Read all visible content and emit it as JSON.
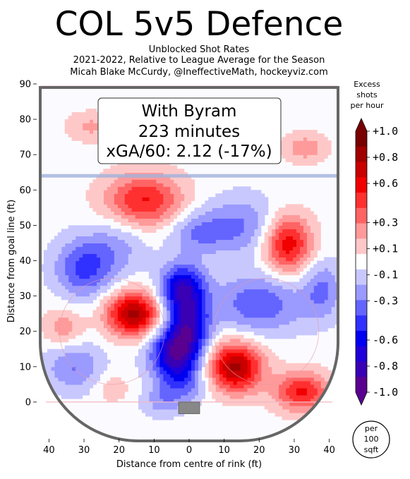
{
  "chart_data": {
    "type": "heatmap",
    "title": "COL 5v5 Defence",
    "subtitle_lines": [
      "Unblocked Shot Rates",
      "2021-2022, Relative to League Average for the Season",
      "Micah Blake McCurdy, @IneffectiveMath, hockeyviz.com"
    ],
    "xlabel": "Distance from centre of rink (ft)",
    "ylabel": "Distance from goal line (ft)",
    "xlim": [
      42.5,
      -42.5
    ],
    "ylim": [
      -10,
      90
    ],
    "x_ticks": [
      40,
      30,
      20,
      10,
      0,
      10,
      20,
      30,
      40
    ],
    "x_tick_values": [
      40,
      30,
      20,
      10,
      0,
      -10,
      -20,
      -30,
      -40
    ],
    "y_ticks": [
      0,
      10,
      20,
      30,
      40,
      50,
      60,
      70,
      80,
      90
    ],
    "annotation": {
      "line1": "With Byram",
      "line2": "223 minutes",
      "line3": "xGA/60: 2.12 (-17%)"
    },
    "colorbar": {
      "title_lines": [
        "Excess",
        "shots",
        "per hour"
      ],
      "labels": [
        "+1.0",
        "+0.8",
        "+0.6",
        "+0.3",
        "+0.1",
        "-0.1",
        "-0.3",
        "-0.6",
        "-0.8",
        "-1.0"
      ],
      "label_values": [
        1.0,
        0.8,
        0.6,
        0.3,
        0.1,
        -0.1,
        -0.3,
        -0.6,
        -0.8,
        -1.0
      ],
      "range": [
        -1.0,
        1.0
      ],
      "colors": [
        "#5a0090",
        "#3a00b4",
        "#2000d8",
        "#0000f0",
        "#3030ff",
        "#6464ff",
        "#9a9aff",
        "#c8c8ff",
        "#ffffff",
        "#ffc8c8",
        "#ff9a9a",
        "#ff6464",
        "#ff3030",
        "#f00000",
        "#c80000",
        "#a00000",
        "#780000"
      ]
    },
    "unit_badge_lines": [
      "per",
      "100",
      "sqft"
    ],
    "hotspots": [
      {
        "x": 16,
        "y": 25,
        "value": 0.8,
        "sx": 5.5,
        "sy": 4.5
      },
      {
        "x": 13,
        "y": 57,
        "value": 0.55,
        "sx": 8,
        "sy": 5.5
      },
      {
        "x": -13,
        "y": 10,
        "value": 0.8,
        "sx": 5.5,
        "sy": 5
      },
      {
        "x": -28,
        "y": 45,
        "value": 0.65,
        "sx": 5,
        "sy": 6
      },
      {
        "x": -32,
        "y": 3,
        "value": 0.55,
        "sx": 5.5,
        "sy": 4
      },
      {
        "x": 36,
        "y": 21,
        "value": 0.25,
        "sx": 4,
        "sy": 4
      },
      {
        "x": -33,
        "y": 72,
        "value": 0.25,
        "sx": 4.5,
        "sy": 3
      },
      {
        "x": 28,
        "y": 78,
        "value": 0.2,
        "sx": 5,
        "sy": 3
      },
      {
        "x": 22,
        "y": 4,
        "value": 0.15,
        "sx": 3.5,
        "sy": 3
      },
      {
        "x": 4,
        "y": 14,
        "value": -0.85,
        "sx": 5,
        "sy": 5
      },
      {
        "x": 2,
        "y": 32,
        "value": -0.75,
        "sx": 4.5,
        "sy": 5
      },
      {
        "x": 0,
        "y": 22,
        "value": -0.6,
        "sx": 4,
        "sy": 5
      },
      {
        "x": 30,
        "y": 38,
        "value": -0.45,
        "sx": 6,
        "sy": 6
      },
      {
        "x": 33,
        "y": 10,
        "value": -0.3,
        "sx": 6,
        "sy": 5
      },
      {
        "x": -15,
        "y": 50,
        "value": -0.3,
        "sx": 9,
        "sy": 6
      },
      {
        "x": -20,
        "y": 28,
        "value": -0.4,
        "sx": 9,
        "sy": 6
      },
      {
        "x": 20,
        "y": 45,
        "value": -0.2,
        "sx": 6,
        "sy": 6
      },
      {
        "x": 2,
        "y": 5,
        "value": -0.3,
        "sx": 5,
        "sy": 4
      },
      {
        "x": -38,
        "y": 32,
        "value": -0.3,
        "sx": 4,
        "sy": 6
      },
      {
        "x": 8,
        "y": 0,
        "value": -0.2,
        "sx": 4,
        "sy": 3
      },
      {
        "x": -2,
        "y": 48,
        "value": -0.25,
        "sx": 6,
        "sy": 4
      }
    ]
  }
}
